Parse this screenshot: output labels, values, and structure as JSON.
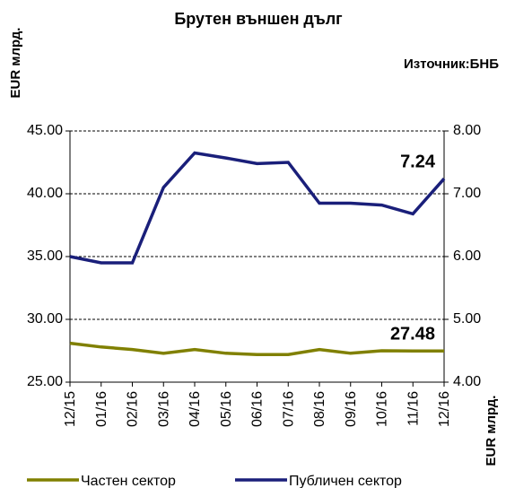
{
  "chart_data": {
    "type": "line",
    "title": "Брутен външен дълг",
    "source": "Източник:БНБ",
    "ylabel": "EUR млрд.",
    "y2label": "EUR млрд.",
    "categories": [
      "12/15",
      "01/16",
      "02/16",
      "03/16",
      "04/16",
      "05/16",
      "06/16",
      "07/16",
      "08/16",
      "09/16",
      "10/16",
      "11/16",
      "12/16"
    ],
    "series": [
      {
        "name": "Частен сектор",
        "color": "#808000",
        "values": [
          28.1,
          27.8,
          27.6,
          27.3,
          27.6,
          27.3,
          27.2,
          27.2,
          27.6,
          27.3,
          27.5,
          27.48,
          27.48
        ]
      },
      {
        "name": "Публичен сектор",
        "color": "#1a1f7a",
        "axis": "y2",
        "values": [
          6.0,
          5.9,
          5.9,
          7.1,
          7.65,
          7.57,
          7.48,
          7.5,
          6.85,
          6.85,
          6.82,
          6.68,
          7.24
        ]
      }
    ],
    "ylim": [
      25,
      45
    ],
    "yticks": [
      {
        "value": 25,
        "label": "25.00"
      },
      {
        "value": 30,
        "label": "30.00"
      },
      {
        "value": 35,
        "label": "35.00"
      },
      {
        "value": 40,
        "label": "40.00"
      },
      {
        "value": 45,
        "label": "45.00"
      }
    ],
    "y2lim": [
      4,
      8
    ],
    "y2ticks": [
      {
        "value": 4,
        "label": "4.00"
      },
      {
        "value": 5,
        "label": "5.00"
      },
      {
        "value": 6,
        "label": "6.00"
      },
      {
        "value": 7,
        "label": "7.00"
      },
      {
        "value": 8,
        "label": "8.00"
      }
    ],
    "grid": true
  }
}
